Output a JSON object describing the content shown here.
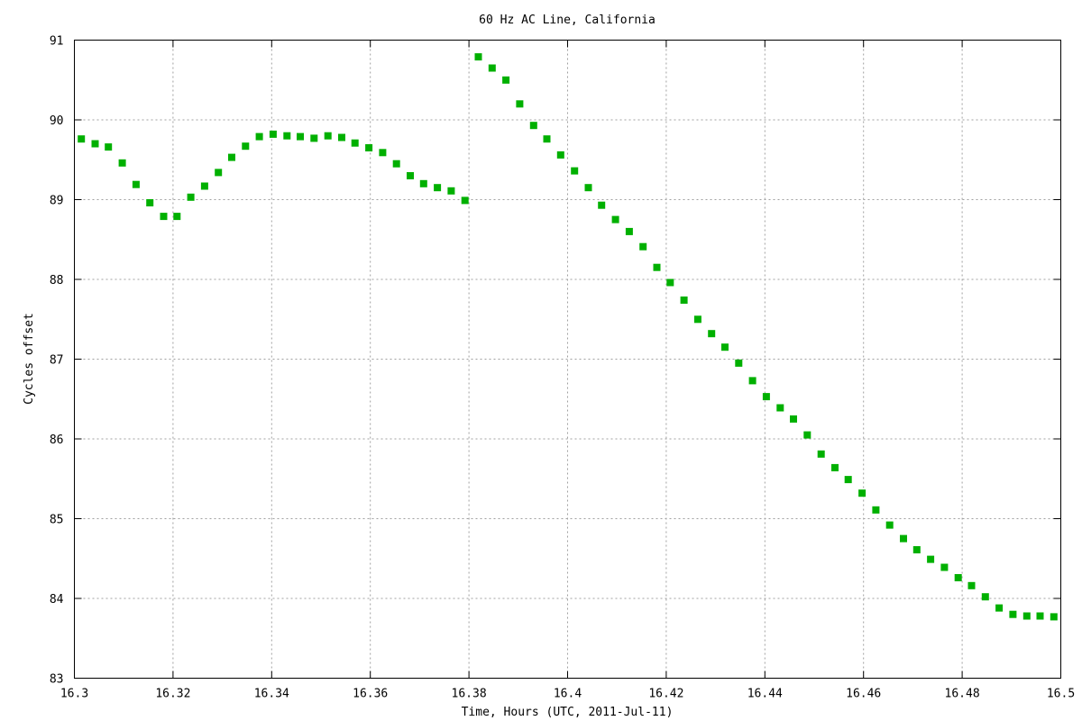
{
  "chart_data": {
    "type": "scatter",
    "title": "60 Hz AC Line, California",
    "xlabel": "Time, Hours (UTC, 2011-Jul-11)",
    "ylabel": "Cycles offset",
    "xlim": [
      16.3,
      16.5
    ],
    "ylim": [
      83,
      91
    ],
    "x_ticks": [
      "16.3",
      "16.32",
      "16.34",
      "16.36",
      "16.38",
      "16.4",
      "16.42",
      "16.44",
      "16.46",
      "16.48",
      "16.5"
    ],
    "y_ticks": [
      "83",
      "84",
      "85",
      "86",
      "87",
      "88",
      "89",
      "90",
      "91"
    ],
    "grid": true,
    "marker_color": "#00b000",
    "series": [
      {
        "points": [
          [
            16.3014,
            89.76
          ],
          [
            16.3042,
            89.7
          ],
          [
            16.3069,
            89.66
          ],
          [
            16.3097,
            89.46
          ],
          [
            16.3125,
            89.19
          ],
          [
            16.3153,
            88.96
          ],
          [
            16.3181,
            88.79
          ],
          [
            16.3208,
            88.79
          ],
          [
            16.3236,
            89.03
          ],
          [
            16.3264,
            89.17
          ],
          [
            16.3292,
            89.34
          ],
          [
            16.3319,
            89.53
          ],
          [
            16.3347,
            89.67
          ],
          [
            16.3375,
            89.79
          ],
          [
            16.3403,
            89.82
          ],
          [
            16.3431,
            89.8
          ],
          [
            16.3458,
            89.79
          ],
          [
            16.3486,
            89.77
          ],
          [
            16.3514,
            89.8
          ],
          [
            16.3542,
            89.78
          ],
          [
            16.3569,
            89.71
          ],
          [
            16.3597,
            89.65
          ],
          [
            16.3625,
            89.59
          ],
          [
            16.3653,
            89.45
          ],
          [
            16.3681,
            89.3
          ],
          [
            16.3708,
            89.2
          ],
          [
            16.3736,
            89.15
          ],
          [
            16.3764,
            89.11
          ],
          [
            16.3792,
            88.99
          ],
          [
            16.3819,
            90.79
          ],
          [
            16.3847,
            90.65
          ],
          [
            16.3875,
            90.5
          ],
          [
            16.3903,
            90.2
          ],
          [
            16.3931,
            89.93
          ],
          [
            16.3958,
            89.76
          ],
          [
            16.3986,
            89.56
          ],
          [
            16.4014,
            89.36
          ],
          [
            16.4042,
            89.15
          ],
          [
            16.4069,
            88.93
          ],
          [
            16.4097,
            88.75
          ],
          [
            16.4125,
            88.6
          ],
          [
            16.4153,
            88.41
          ],
          [
            16.4181,
            88.15
          ],
          [
            16.4208,
            87.96
          ],
          [
            16.4236,
            87.74
          ],
          [
            16.4264,
            87.5
          ],
          [
            16.4292,
            87.32
          ],
          [
            16.4319,
            87.15
          ],
          [
            16.4347,
            86.95
          ],
          [
            16.4375,
            86.73
          ],
          [
            16.4403,
            86.53
          ],
          [
            16.4431,
            86.39
          ],
          [
            16.4458,
            86.25
          ],
          [
            16.4486,
            86.05
          ],
          [
            16.4514,
            85.81
          ],
          [
            16.4542,
            85.64
          ],
          [
            16.4569,
            85.49
          ],
          [
            16.4597,
            85.32
          ],
          [
            16.4625,
            85.11
          ],
          [
            16.4653,
            84.92
          ],
          [
            16.4681,
            84.75
          ],
          [
            16.4708,
            84.61
          ],
          [
            16.4736,
            84.49
          ],
          [
            16.4764,
            84.39
          ],
          [
            16.4792,
            84.26
          ],
          [
            16.4819,
            84.16
          ],
          [
            16.4847,
            84.02
          ],
          [
            16.4875,
            83.88
          ],
          [
            16.4903,
            83.8
          ],
          [
            16.4931,
            83.78
          ],
          [
            16.4958,
            83.78
          ],
          [
            16.4986,
            83.77
          ]
        ]
      }
    ]
  }
}
